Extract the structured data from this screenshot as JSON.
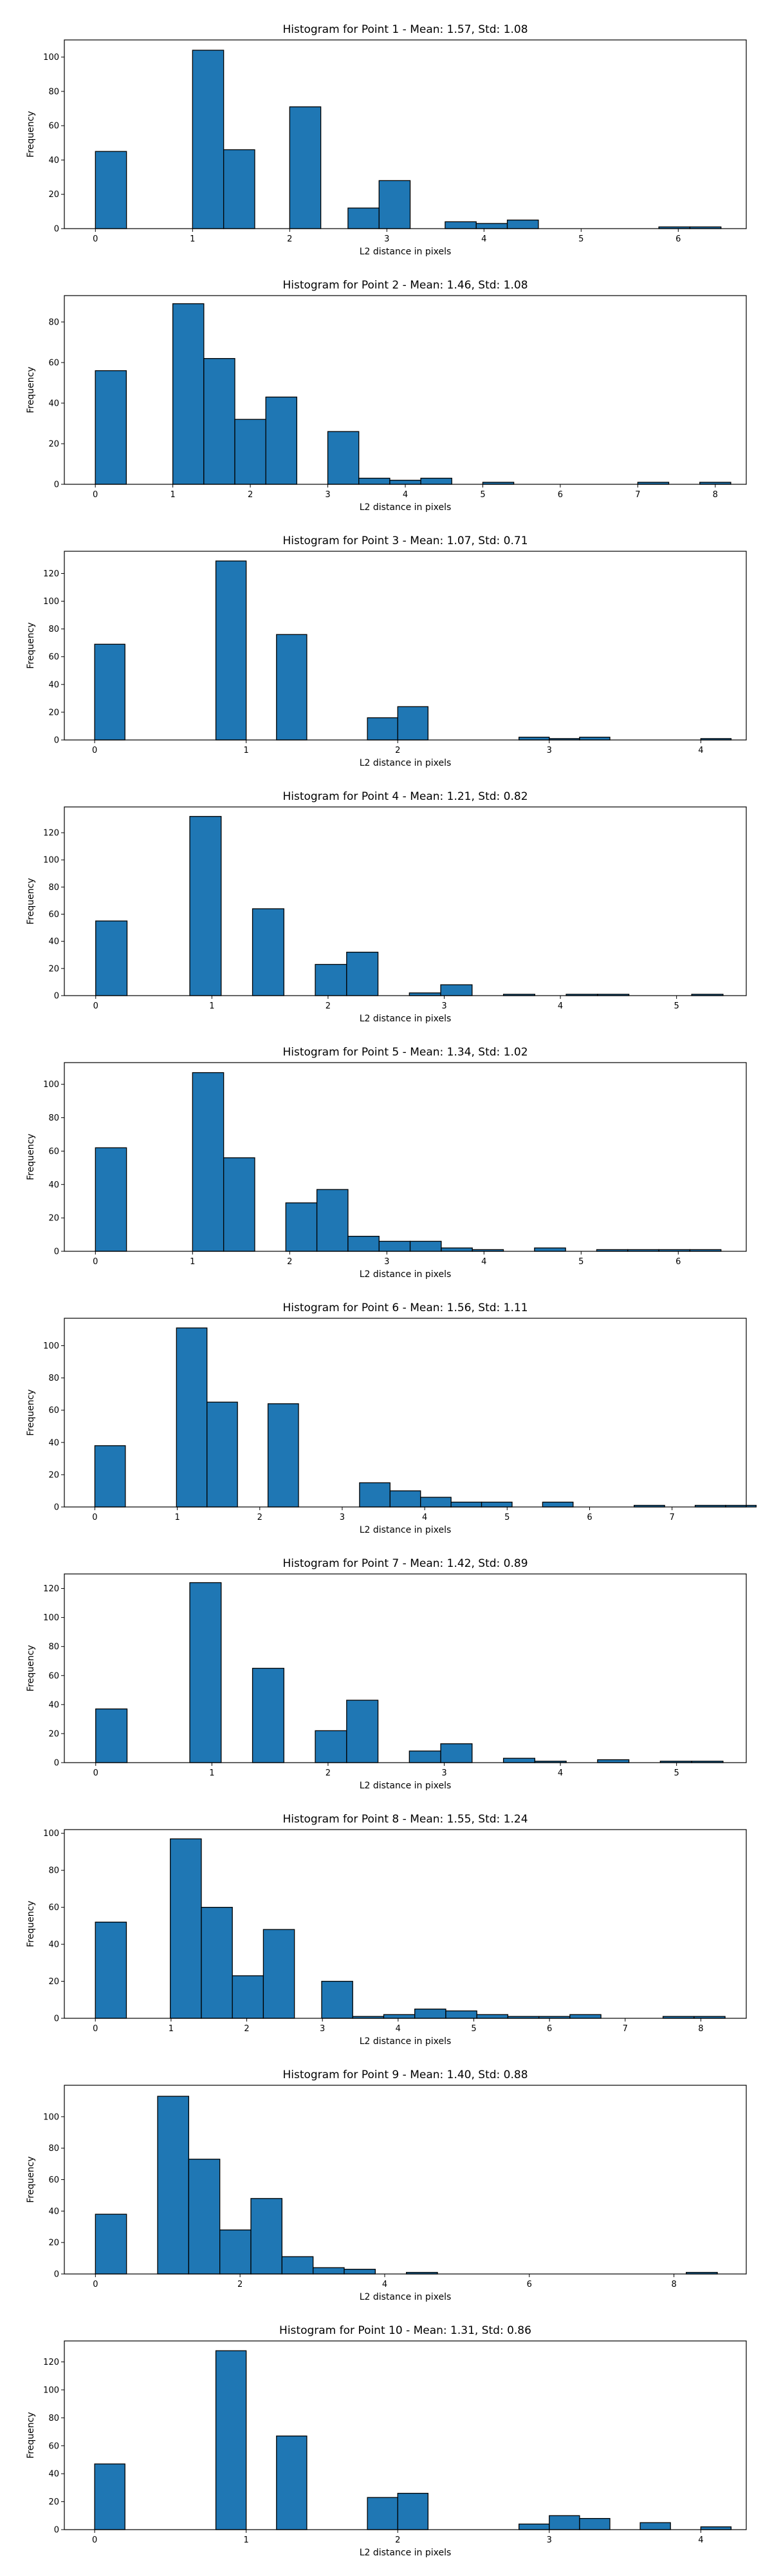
{
  "chart_data": [
    {
      "type": "bar",
      "title": "Histogram for Point 1 - Mean: 1.57, Std: 1.08",
      "xlabel": "L2 distance in pixels",
      "ylabel": "Frequency",
      "xlim": [
        -0.32,
        6.7
      ],
      "ylim": [
        0,
        110
      ],
      "xticks": [
        0,
        1,
        2,
        3,
        4,
        5,
        6
      ],
      "yticks": [
        0,
        20,
        40,
        60,
        80,
        100
      ],
      "bin_width": 0.32,
      "bins": [
        {
          "x": 0.0,
          "count": 45
        },
        {
          "x": 1.0,
          "count": 104
        },
        {
          "x": 1.32,
          "count": 46
        },
        {
          "x": 2.0,
          "count": 71
        },
        {
          "x": 2.6,
          "count": 12
        },
        {
          "x": 2.92,
          "count": 28
        },
        {
          "x": 3.6,
          "count": 4
        },
        {
          "x": 3.92,
          "count": 3
        },
        {
          "x": 4.24,
          "count": 5
        },
        {
          "x": 5.8,
          "count": 1
        },
        {
          "x": 6.12,
          "count": 1
        }
      ]
    },
    {
      "type": "bar",
      "title": "Histogram for Point 2 - Mean: 1.46, Std: 1.08",
      "xlabel": "L2 distance in pixels",
      "ylabel": "Frequency",
      "xlim": [
        -0.4,
        8.4
      ],
      "ylim": [
        0,
        93
      ],
      "xticks": [
        0,
        1,
        2,
        3,
        4,
        5,
        6,
        7,
        8
      ],
      "yticks": [
        0,
        20,
        40,
        60,
        80
      ],
      "bin_width": 0.4,
      "bins": [
        {
          "x": 0.0,
          "count": 56
        },
        {
          "x": 1.0,
          "count": 89
        },
        {
          "x": 1.4,
          "count": 62
        },
        {
          "x": 1.8,
          "count": 32
        },
        {
          "x": 2.2,
          "count": 43
        },
        {
          "x": 3.0,
          "count": 26
        },
        {
          "x": 3.4,
          "count": 3
        },
        {
          "x": 3.8,
          "count": 2
        },
        {
          "x": 4.2,
          "count": 3
        },
        {
          "x": 5.0,
          "count": 1
        },
        {
          "x": 7.0,
          "count": 1
        },
        {
          "x": 7.8,
          "count": 1
        }
      ]
    },
    {
      "type": "bar",
      "title": "Histogram for Point 3 - Mean: 1.07, Std: 0.71",
      "xlabel": "L2 distance in pixels",
      "ylabel": "Frequency",
      "xlim": [
        -0.2,
        4.3
      ],
      "ylim": [
        0,
        136
      ],
      "xticks": [
        0,
        1,
        2,
        3,
        4
      ],
      "yticks": [
        0,
        20,
        40,
        60,
        80,
        100,
        120
      ],
      "bin_width": 0.2,
      "bins": [
        {
          "x": 0.0,
          "count": 69
        },
        {
          "x": 0.8,
          "count": 129
        },
        {
          "x": 1.2,
          "count": 76
        },
        {
          "x": 1.8,
          "count": 16
        },
        {
          "x": 2.0,
          "count": 24
        },
        {
          "x": 2.8,
          "count": 2
        },
        {
          "x": 3.0,
          "count": 1
        },
        {
          "x": 3.2,
          "count": 2
        },
        {
          "x": 4.0,
          "count": 1
        }
      ]
    },
    {
      "type": "bar",
      "title": "Histogram for Point 4 - Mean: 1.21, Std: 0.82",
      "xlabel": "L2 distance in pixels",
      "ylabel": "Frequency",
      "xlim": [
        -0.27,
        5.6
      ],
      "ylim": [
        0,
        139
      ],
      "xticks": [
        0,
        1,
        2,
        3,
        4,
        5
      ],
      "yticks": [
        0,
        20,
        40,
        60,
        80,
        100,
        120
      ],
      "bin_width": 0.27,
      "bins": [
        {
          "x": 0.0,
          "count": 55
        },
        {
          "x": 0.81,
          "count": 132
        },
        {
          "x": 1.35,
          "count": 64
        },
        {
          "x": 1.89,
          "count": 23
        },
        {
          "x": 2.16,
          "count": 32
        },
        {
          "x": 2.7,
          "count": 2
        },
        {
          "x": 2.97,
          "count": 8
        },
        {
          "x": 3.51,
          "count": 1
        },
        {
          "x": 4.05,
          "count": 1
        },
        {
          "x": 4.32,
          "count": 1
        },
        {
          "x": 5.13,
          "count": 1
        }
      ]
    },
    {
      "type": "bar",
      "title": "Histogram for Point 5 - Mean: 1.34, Std: 1.02",
      "xlabel": "L2 distance in pixels",
      "ylabel": "Frequency",
      "xlim": [
        -0.32,
        6.7
      ],
      "ylim": [
        0,
        113
      ],
      "xticks": [
        0,
        1,
        2,
        3,
        4,
        5,
        6
      ],
      "yticks": [
        0,
        20,
        40,
        60,
        80,
        100
      ],
      "bin_width": 0.32,
      "bins": [
        {
          "x": 0.0,
          "count": 62
        },
        {
          "x": 1.0,
          "count": 107
        },
        {
          "x": 1.32,
          "count": 56
        },
        {
          "x": 1.96,
          "count": 29
        },
        {
          "x": 2.28,
          "count": 37
        },
        {
          "x": 2.6,
          "count": 9
        },
        {
          "x": 2.92,
          "count": 6
        },
        {
          "x": 3.24,
          "count": 6
        },
        {
          "x": 3.56,
          "count": 2
        },
        {
          "x": 3.88,
          "count": 1
        },
        {
          "x": 4.52,
          "count": 2
        },
        {
          "x": 5.16,
          "count": 1
        },
        {
          "x": 5.48,
          "count": 1
        },
        {
          "x": 5.8,
          "count": 1
        },
        {
          "x": 6.12,
          "count": 1
        }
      ]
    },
    {
      "type": "bar",
      "title": "Histogram for Point 6 - Mean: 1.56, Std: 1.11",
      "xlabel": "L2 distance in pixels",
      "ylabel": "Frequency",
      "xlim": [
        -0.37,
        7.9
      ],
      "ylim": [
        0,
        117
      ],
      "xticks": [
        0,
        1,
        2,
        3,
        4,
        5,
        6,
        7
      ],
      "yticks": [
        0,
        20,
        40,
        60,
        80,
        100
      ],
      "bin_width": 0.37,
      "bins": [
        {
          "x": 0.0,
          "count": 38
        },
        {
          "x": 0.99,
          "count": 111
        },
        {
          "x": 1.36,
          "count": 65
        },
        {
          "x": 2.1,
          "count": 64
        },
        {
          "x": 3.21,
          "count": 15
        },
        {
          "x": 3.58,
          "count": 10
        },
        {
          "x": 3.95,
          "count": 6
        },
        {
          "x": 4.32,
          "count": 3
        },
        {
          "x": 4.69,
          "count": 3
        },
        {
          "x": 5.43,
          "count": 3
        },
        {
          "x": 6.54,
          "count": 1
        },
        {
          "x": 7.28,
          "count": 1
        },
        {
          "x": 7.65,
          "count": 1
        }
      ]
    },
    {
      "type": "bar",
      "title": "Histogram for Point 7 - Mean: 1.42, Std: 0.89",
      "xlabel": "L2 distance in pixels",
      "ylabel": "Frequency",
      "xlim": [
        -0.27,
        5.6
      ],
      "ylim": [
        0,
        130
      ],
      "xticks": [
        0,
        1,
        2,
        3,
        4,
        5
      ],
      "yticks": [
        0,
        20,
        40,
        60,
        80,
        100,
        120
      ],
      "bin_width": 0.27,
      "bins": [
        {
          "x": 0.0,
          "count": 37
        },
        {
          "x": 0.81,
          "count": 124
        },
        {
          "x": 1.35,
          "count": 65
        },
        {
          "x": 1.89,
          "count": 22
        },
        {
          "x": 2.16,
          "count": 43
        },
        {
          "x": 2.7,
          "count": 8
        },
        {
          "x": 2.97,
          "count": 13
        },
        {
          "x": 3.51,
          "count": 3
        },
        {
          "x": 3.78,
          "count": 1
        },
        {
          "x": 4.32,
          "count": 2
        },
        {
          "x": 4.86,
          "count": 1
        },
        {
          "x": 5.13,
          "count": 1
        }
      ]
    },
    {
      "type": "bar",
      "title": "Histogram for Point 8 - Mean: 1.55, Std: 1.24",
      "xlabel": "L2 distance in pixels",
      "ylabel": "Frequency",
      "xlim": [
        -0.41,
        8.6
      ],
      "ylim": [
        0,
        102
      ],
      "xticks": [
        0,
        1,
        2,
        3,
        4,
        5,
        6,
        7,
        8
      ],
      "yticks": [
        0,
        20,
        40,
        60,
        80,
        100
      ],
      "bin_width": 0.41,
      "bins": [
        {
          "x": 0.0,
          "count": 52
        },
        {
          "x": 0.99,
          "count": 97
        },
        {
          "x": 1.4,
          "count": 60
        },
        {
          "x": 1.81,
          "count": 23
        },
        {
          "x": 2.22,
          "count": 48
        },
        {
          "x": 2.99,
          "count": 20
        },
        {
          "x": 3.4,
          "count": 1
        },
        {
          "x": 3.81,
          "count": 2
        },
        {
          "x": 4.22,
          "count": 5
        },
        {
          "x": 4.63,
          "count": 4
        },
        {
          "x": 5.04,
          "count": 2
        },
        {
          "x": 5.45,
          "count": 1
        },
        {
          "x": 5.86,
          "count": 1
        },
        {
          "x": 6.27,
          "count": 2
        },
        {
          "x": 7.5,
          "count": 1
        },
        {
          "x": 7.91,
          "count": 1
        }
      ]
    },
    {
      "type": "bar",
      "title": "Histogram for Point 9 - Mean: 1.40, Std: 0.88",
      "xlabel": "L2 distance in pixels",
      "ylabel": "Frequency",
      "xlim": [
        -0.43,
        9.0
      ],
      "ylim": [
        0,
        120
      ],
      "xticks": [
        0,
        2,
        4,
        6,
        8
      ],
      "yticks": [
        0,
        20,
        40,
        60,
        80,
        100
      ],
      "bin_width": 0.43,
      "bins": [
        {
          "x": 0.0,
          "count": 38
        },
        {
          "x": 0.86,
          "count": 113
        },
        {
          "x": 1.29,
          "count": 73
        },
        {
          "x": 1.72,
          "count": 28
        },
        {
          "x": 2.15,
          "count": 48
        },
        {
          "x": 2.58,
          "count": 11
        },
        {
          "x": 3.01,
          "count": 4
        },
        {
          "x": 3.44,
          "count": 3
        },
        {
          "x": 4.3,
          "count": 1
        },
        {
          "x": 8.17,
          "count": 1
        }
      ]
    },
    {
      "type": "bar",
      "title": "Histogram for Point 10 - Mean: 1.31, Std: 0.86",
      "xlabel": "L2 distance in pixels",
      "ylabel": "Frequency",
      "xlim": [
        -0.2,
        4.3
      ],
      "ylim": [
        0,
        135
      ],
      "xticks": [
        0,
        1,
        2,
        3,
        4
      ],
      "yticks": [
        0,
        20,
        40,
        60,
        80,
        100,
        120
      ],
      "bin_width": 0.2,
      "bins": [
        {
          "x": 0.0,
          "count": 47
        },
        {
          "x": 0.8,
          "count": 128
        },
        {
          "x": 1.2,
          "count": 67
        },
        {
          "x": 1.8,
          "count": 23
        },
        {
          "x": 2.0,
          "count": 26
        },
        {
          "x": 2.8,
          "count": 4
        },
        {
          "x": 3.0,
          "count": 10
        },
        {
          "x": 3.2,
          "count": 8
        },
        {
          "x": 3.6,
          "count": 5
        },
        {
          "x": 4.0,
          "count": 2
        }
      ]
    }
  ]
}
